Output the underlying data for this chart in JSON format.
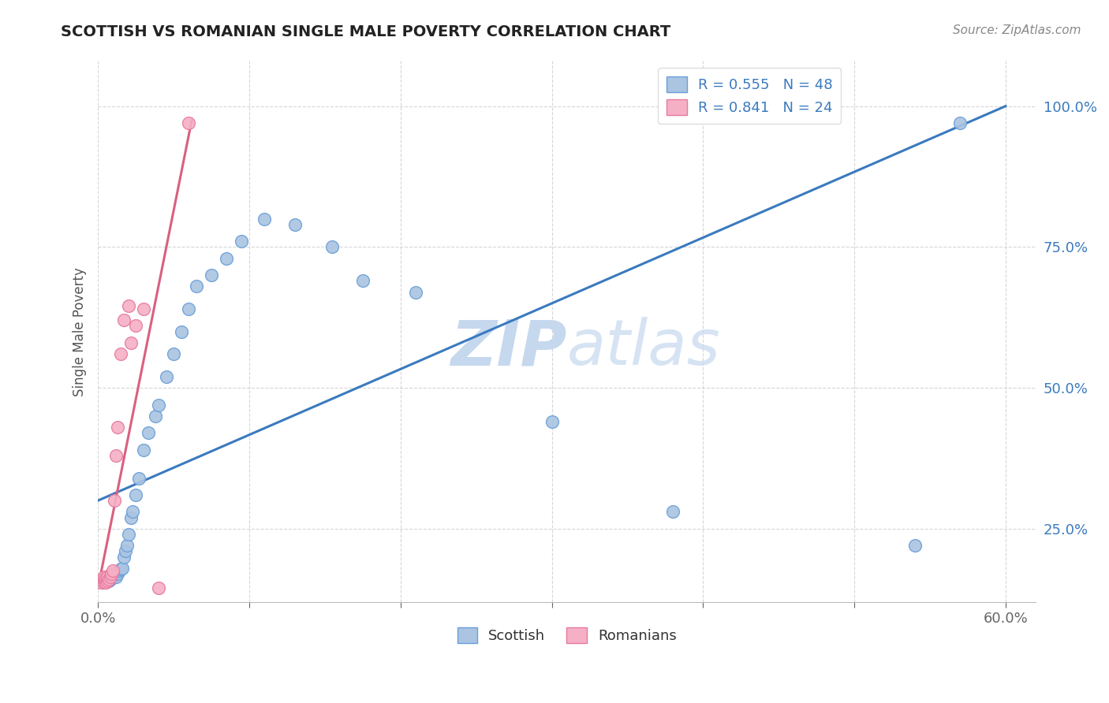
{
  "title": "SCOTTISH VS ROMANIAN SINGLE MALE POVERTY CORRELATION CHART",
  "source": "Source: ZipAtlas.com",
  "ylabel": "Single Male Poverty",
  "xlim": [
    0.0,
    0.62
  ],
  "ylim": [
    0.12,
    1.08
  ],
  "x_tick_positions": [
    0.0,
    0.1,
    0.2,
    0.3,
    0.4,
    0.5,
    0.6
  ],
  "x_tick_labels": [
    "0.0%",
    "",
    "",
    "",
    "",
    "",
    "60.0%"
  ],
  "y_tick_positions": [
    0.25,
    0.5,
    0.75,
    1.0
  ],
  "y_tick_labels": [
    "25.0%",
    "50.0%",
    "75.0%",
    "100.0%"
  ],
  "scottish_color": "#aac4e2",
  "scottish_edge_color": "#6a9fd8",
  "romanian_color": "#f5b0c5",
  "romanian_edge_color": "#e87aa0",
  "line_blue_color": "#3a7abf",
  "line_pink_color": "#d96080",
  "watermark_color": "#dce8f5",
  "legend_scottish_label": "Scottish",
  "legend_romanian_label": "Romanians",
  "R_scottish": 0.555,
  "N_scottish": 48,
  "R_romanian": 0.841,
  "N_romanian": 24,
  "background_color": "#ffffff",
  "grid_color": "#cccccc",
  "scottish_x": [
    0.003,
    0.004,
    0.005,
    0.006,
    0.006,
    0.007,
    0.007,
    0.008,
    0.008,
    0.009,
    0.01,
    0.01,
    0.011,
    0.012,
    0.012,
    0.013,
    0.014,
    0.015,
    0.016,
    0.017,
    0.018,
    0.019,
    0.02,
    0.022,
    0.023,
    0.025,
    0.027,
    0.03,
    0.033,
    0.038,
    0.04,
    0.045,
    0.05,
    0.055,
    0.06,
    0.065,
    0.075,
    0.085,
    0.095,
    0.11,
    0.13,
    0.155,
    0.175,
    0.21,
    0.3,
    0.38,
    0.54,
    0.57
  ],
  "scottish_y": [
    0.155,
    0.16,
    0.158,
    0.162,
    0.165,
    0.158,
    0.162,
    0.16,
    0.165,
    0.162,
    0.165,
    0.168,
    0.17,
    0.165,
    0.172,
    0.17,
    0.175,
    0.178,
    0.18,
    0.2,
    0.21,
    0.22,
    0.24,
    0.27,
    0.28,
    0.31,
    0.34,
    0.39,
    0.42,
    0.45,
    0.47,
    0.52,
    0.56,
    0.6,
    0.64,
    0.68,
    0.7,
    0.73,
    0.76,
    0.8,
    0.79,
    0.75,
    0.69,
    0.67,
    0.44,
    0.28,
    0.22,
    0.97
  ],
  "romanian_x": [
    0.002,
    0.003,
    0.003,
    0.004,
    0.004,
    0.005,
    0.005,
    0.006,
    0.006,
    0.007,
    0.008,
    0.009,
    0.01,
    0.011,
    0.012,
    0.013,
    0.015,
    0.017,
    0.02,
    0.022,
    0.025,
    0.03,
    0.04,
    0.06
  ],
  "romanian_y": [
    0.155,
    0.158,
    0.162,
    0.16,
    0.165,
    0.155,
    0.162,
    0.158,
    0.165,
    0.16,
    0.165,
    0.17,
    0.175,
    0.3,
    0.38,
    0.43,
    0.56,
    0.62,
    0.645,
    0.58,
    0.61,
    0.64,
    0.145,
    0.97
  ],
  "blue_trend_x": [
    0.0,
    0.6
  ],
  "blue_trend_y": [
    0.3,
    1.0
  ],
  "pink_trend_x": [
    0.0,
    0.062
  ],
  "pink_trend_y": [
    0.145,
    0.975
  ]
}
